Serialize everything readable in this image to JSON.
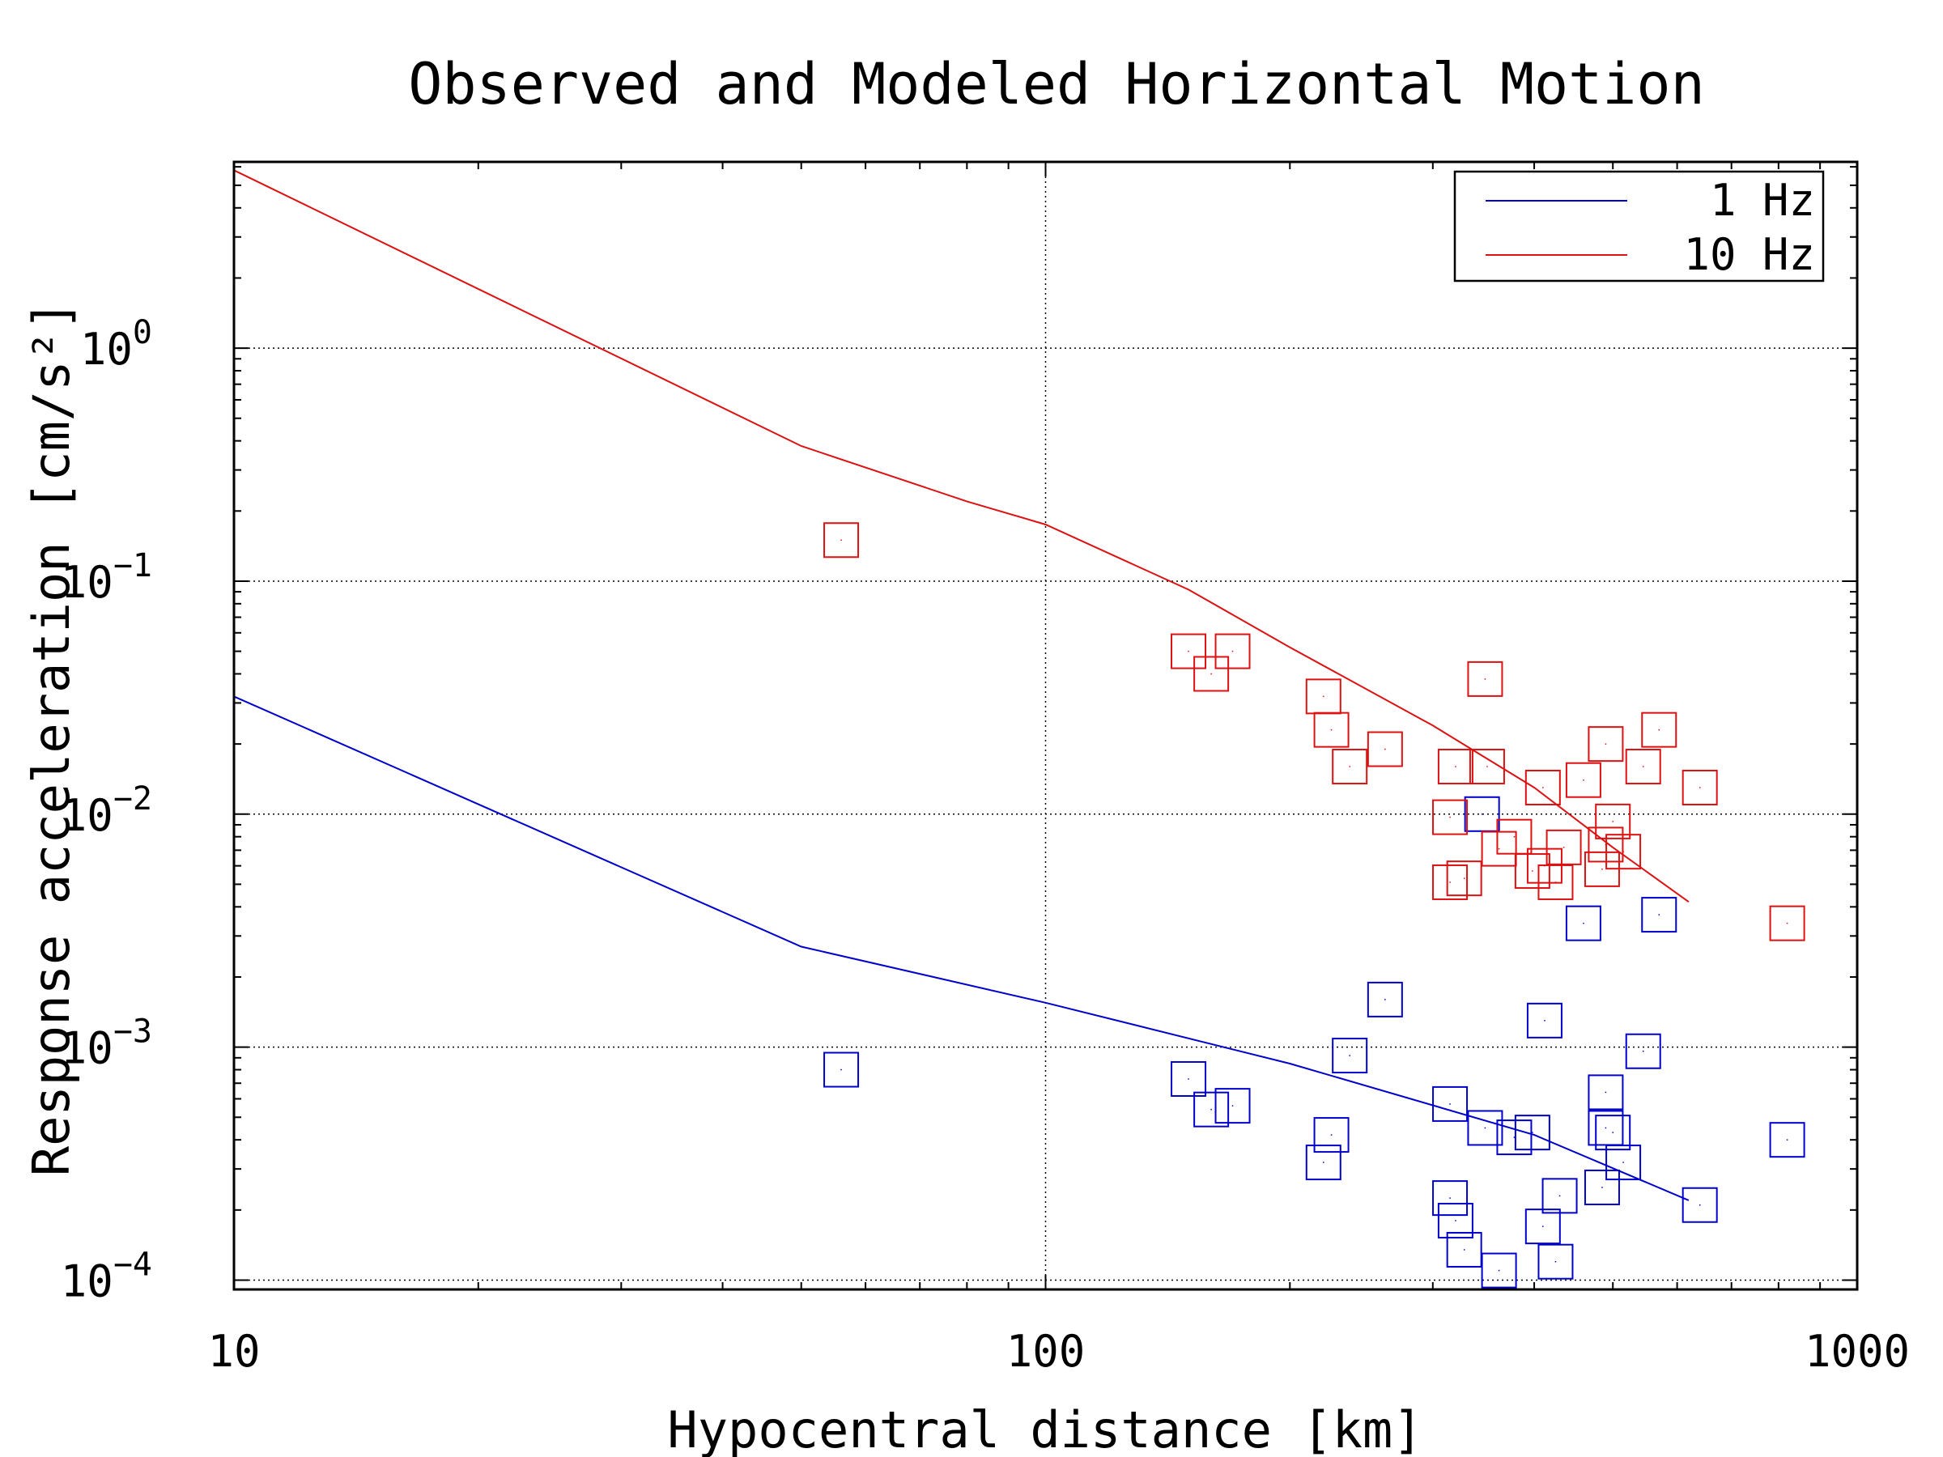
{
  "chart_data": {
    "type": "scatter",
    "title": "Observed and Modeled Horizontal Motion",
    "xlabel": "Hypocentral distance [km]",
    "ylabel": "Response acceleration [cm/s²]",
    "xscale": "log",
    "yscale": "log",
    "xlim": [
      10,
      1000
    ],
    "ylim": [
      9.12e-05,
      6.3
    ],
    "x_ticks": [
      {
        "value": 10,
        "label": "10"
      },
      {
        "value": 100,
        "label": "100"
      },
      {
        "value": 1000,
        "label": "1000"
      }
    ],
    "y_ticks": [
      {
        "value": 0.0001,
        "base": "10",
        "exp": "−4"
      },
      {
        "value": 0.001,
        "base": "10",
        "exp": "−3"
      },
      {
        "value": 0.01,
        "base": "10",
        "exp": "−2"
      },
      {
        "value": 0.1,
        "base": "10",
        "exp": "−1"
      },
      {
        "value": 1,
        "base": "10",
        "exp": "0"
      }
    ],
    "grid": true,
    "legend_position": "top-right",
    "series": [
      {
        "name": "1 Hz",
        "color": "#0000cc",
        "model_line": {
          "x": [
            10,
            50,
            100,
            200,
            400,
            620
          ],
          "y": [
            0.032,
            0.0027,
            0.00155,
            0.00085,
            0.00042,
            0.00022
          ]
        },
        "observed": [
          {
            "x": 56,
            "y": 0.0008
          },
          {
            "x": 150,
            "y": 0.00073
          },
          {
            "x": 160,
            "y": 0.00054
          },
          {
            "x": 170,
            "y": 0.00056
          },
          {
            "x": 220,
            "y": 0.00032
          },
          {
            "x": 225,
            "y": 0.00042
          },
          {
            "x": 237,
            "y": 0.00092
          },
          {
            "x": 262,
            "y": 0.0016
          },
          {
            "x": 315,
            "y": 0.000225
          },
          {
            "x": 320,
            "y": 0.00018
          },
          {
            "x": 315,
            "y": 0.00057
          },
          {
            "x": 328,
            "y": 0.000135
          },
          {
            "x": 345,
            "y": 0.01
          },
          {
            "x": 348,
            "y": 0.00045
          },
          {
            "x": 362,
            "y": 0.00011
          },
          {
            "x": 378,
            "y": 0.00041
          },
          {
            "x": 398,
            "y": 0.00043
          },
          {
            "x": 410,
            "y": 0.00017
          },
          {
            "x": 412,
            "y": 0.0013
          },
          {
            "x": 425,
            "y": 0.00012
          },
          {
            "x": 430,
            "y": 0.00023
          },
          {
            "x": 460,
            "y": 0.0034
          },
          {
            "x": 485,
            "y": 0.00025
          },
          {
            "x": 490,
            "y": 0.00064
          },
          {
            "x": 490,
            "y": 0.00045
          },
          {
            "x": 500,
            "y": 0.00043
          },
          {
            "x": 515,
            "y": 0.00032
          },
          {
            "x": 545,
            "y": 0.00096
          },
          {
            "x": 570,
            "y": 0.0037
          },
          {
            "x": 640,
            "y": 0.00021
          },
          {
            "x": 820,
            "y": 0.0004
          }
        ]
      },
      {
        "name": "10 Hz",
        "color": "#dd1111",
        "model_line": {
          "x": [
            10,
            50,
            80,
            100,
            150,
            200,
            300,
            400,
            500,
            620
          ],
          "y": [
            5.8,
            0.38,
            0.22,
            0.175,
            0.092,
            0.052,
            0.024,
            0.013,
            0.0072,
            0.0042
          ]
        },
        "observed": [
          {
            "x": 56,
            "y": 0.15
          },
          {
            "x": 150,
            "y": 0.05
          },
          {
            "x": 160,
            "y": 0.04
          },
          {
            "x": 170,
            "y": 0.05
          },
          {
            "x": 220,
            "y": 0.032
          },
          {
            "x": 225,
            "y": 0.023
          },
          {
            "x": 237,
            "y": 0.016
          },
          {
            "x": 262,
            "y": 0.019
          },
          {
            "x": 315,
            "y": 0.0097
          },
          {
            "x": 315,
            "y": 0.0051
          },
          {
            "x": 320,
            "y": 0.016
          },
          {
            "x": 328,
            "y": 0.0053
          },
          {
            "x": 348,
            "y": 0.038
          },
          {
            "x": 350,
            "y": 0.016
          },
          {
            "x": 362,
            "y": 0.0071
          },
          {
            "x": 378,
            "y": 0.008
          },
          {
            "x": 398,
            "y": 0.0057
          },
          {
            "x": 410,
            "y": 0.013
          },
          {
            "x": 412,
            "y": 0.006
          },
          {
            "x": 425,
            "y": 0.0051
          },
          {
            "x": 435,
            "y": 0.0072
          },
          {
            "x": 460,
            "y": 0.014
          },
          {
            "x": 485,
            "y": 0.0058
          },
          {
            "x": 490,
            "y": 0.0074
          },
          {
            "x": 490,
            "y": 0.02
          },
          {
            "x": 500,
            "y": 0.0093
          },
          {
            "x": 515,
            "y": 0.0069
          },
          {
            "x": 545,
            "y": 0.016
          },
          {
            "x": 570,
            "y": 0.023
          },
          {
            "x": 640,
            "y": 0.013
          },
          {
            "x": 820,
            "y": 0.0034
          }
        ]
      }
    ]
  }
}
